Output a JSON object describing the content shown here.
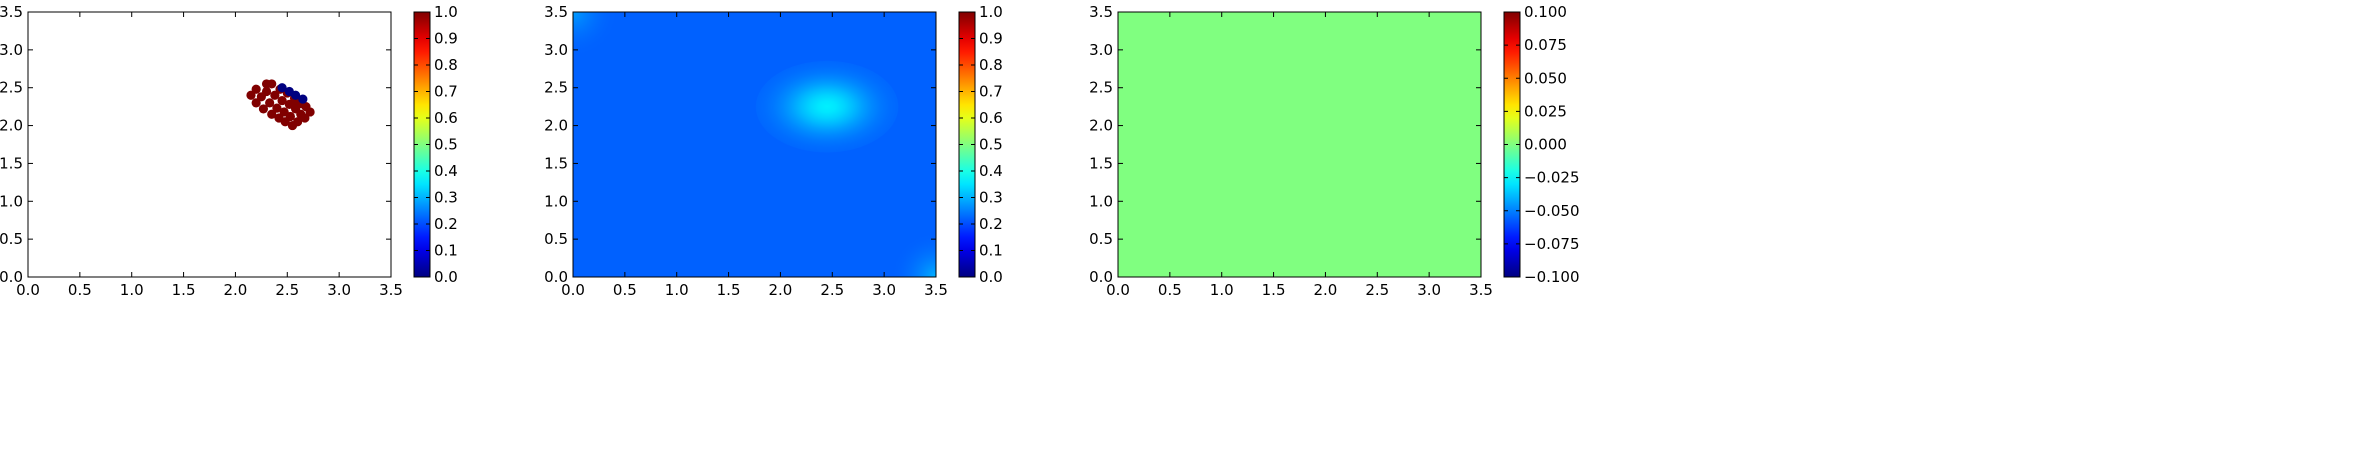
{
  "chart_data": [
    {
      "type": "scatter",
      "title": "",
      "xlabel": "",
      "ylabel": "",
      "xlim": [
        0,
        3.5
      ],
      "ylim": [
        0,
        3.5
      ],
      "x_ticks": [
        "0.0",
        "0.5",
        "1.0",
        "1.5",
        "2.0",
        "2.5",
        "3.0",
        "3.5"
      ],
      "y_ticks": [
        "0.0",
        "0.5",
        "1.0",
        "1.5",
        "2.0",
        "2.5",
        "3.0",
        "3.5"
      ],
      "colormap": "jet",
      "colorbar": {
        "range": [
          0,
          1
        ],
        "ticks": [
          "0.0",
          "0.1",
          "0.2",
          "0.3",
          "0.4",
          "0.5",
          "0.6",
          "0.7",
          "0.8",
          "0.9",
          "1.0"
        ]
      },
      "points": [
        {
          "x": 2.15,
          "y": 2.4,
          "v": 1
        },
        {
          "x": 2.2,
          "y": 2.3,
          "v": 1
        },
        {
          "x": 2.2,
          "y": 2.48,
          "v": 1
        },
        {
          "x": 2.25,
          "y": 2.38,
          "v": 1
        },
        {
          "x": 2.27,
          "y": 2.22,
          "v": 1
        },
        {
          "x": 2.3,
          "y": 2.45,
          "v": 1
        },
        {
          "x": 2.3,
          "y": 2.55,
          "v": 1
        },
        {
          "x": 2.33,
          "y": 2.3,
          "v": 1
        },
        {
          "x": 2.35,
          "y": 2.15,
          "v": 1
        },
        {
          "x": 2.35,
          "y": 2.55,
          "v": 1
        },
        {
          "x": 2.38,
          "y": 2.4,
          "v": 1
        },
        {
          "x": 2.4,
          "y": 2.23,
          "v": 1
        },
        {
          "x": 2.42,
          "y": 2.1,
          "v": 1
        },
        {
          "x": 2.43,
          "y": 2.48,
          "v": 1
        },
        {
          "x": 2.45,
          "y": 2.33,
          "v": 1
        },
        {
          "x": 2.47,
          "y": 2.18,
          "v": 1
        },
        {
          "x": 2.48,
          "y": 2.05,
          "v": 1
        },
        {
          "x": 2.5,
          "y": 2.43,
          "v": 1
        },
        {
          "x": 2.52,
          "y": 2.28,
          "v": 1
        },
        {
          "x": 2.53,
          "y": 2.12,
          "v": 1
        },
        {
          "x": 2.55,
          "y": 2.0,
          "v": 1
        },
        {
          "x": 2.57,
          "y": 2.36,
          "v": 1
        },
        {
          "x": 2.58,
          "y": 2.22,
          "v": 1
        },
        {
          "x": 2.6,
          "y": 2.05,
          "v": 1
        },
        {
          "x": 2.63,
          "y": 2.15,
          "v": 1
        },
        {
          "x": 2.63,
          "y": 2.29,
          "v": 1
        },
        {
          "x": 2.67,
          "y": 2.1,
          "v": 1
        },
        {
          "x": 2.68,
          "y": 2.25,
          "v": 1
        },
        {
          "x": 2.72,
          "y": 2.18,
          "v": 1
        },
        {
          "x": 2.58,
          "y": 2.3,
          "v": 1
        },
        {
          "x": 2.45,
          "y": 2.5,
          "v": 0
        },
        {
          "x": 2.52,
          "y": 2.45,
          "v": 0
        },
        {
          "x": 2.58,
          "y": 2.4,
          "v": 0
        },
        {
          "x": 2.65,
          "y": 2.35,
          "v": 0
        }
      ]
    },
    {
      "type": "heatmap",
      "title": "",
      "xlabel": "",
      "ylabel": "",
      "xlim": [
        0,
        3.5
      ],
      "ylim": [
        0,
        3.5
      ],
      "x_ticks": [
        "0.0",
        "0.5",
        "1.0",
        "1.5",
        "2.0",
        "2.5",
        "3.0",
        "3.5"
      ],
      "y_ticks": [
        "0.0",
        "0.5",
        "1.0",
        "1.5",
        "2.0",
        "2.5",
        "3.0",
        "3.5"
      ],
      "colormap": "jet",
      "colorbar": {
        "range": [
          0,
          1
        ],
        "ticks": [
          "0.0",
          "0.1",
          "0.2",
          "0.3",
          "0.4",
          "0.5",
          "0.6",
          "0.7",
          "0.8",
          "0.9",
          "1.0"
        ]
      },
      "field": {
        "base": 0.22,
        "peak": {
          "x": 2.45,
          "y": 2.25,
          "value": 0.36,
          "sigma": 0.55
        },
        "corner_highlights": [
          {
            "x": 3.5,
            "y": 0.0,
            "value": 0.3
          },
          {
            "x": 0.0,
            "y": 3.5,
            "value": 0.28
          }
        ]
      }
    },
    {
      "type": "heatmap",
      "title": "",
      "xlabel": "",
      "ylabel": "",
      "xlim": [
        0,
        3.5
      ],
      "ylim": [
        0,
        3.5
      ],
      "x_ticks": [
        "0.0",
        "0.5",
        "1.0",
        "1.5",
        "2.0",
        "2.5",
        "3.0",
        "3.5"
      ],
      "y_ticks": [
        "0.0",
        "0.5",
        "1.0",
        "1.5",
        "2.0",
        "2.5",
        "3.0",
        "3.5"
      ],
      "colormap": "jet",
      "colorbar": {
        "range": [
          -0.1,
          0.1
        ],
        "ticks": [
          "−0.100",
          "−0.075",
          "−0.050",
          "−0.025",
          "0.000",
          "0.025",
          "0.050",
          "0.075",
          "0.100"
        ]
      },
      "field": {
        "uniform_value": 0.0
      }
    }
  ]
}
